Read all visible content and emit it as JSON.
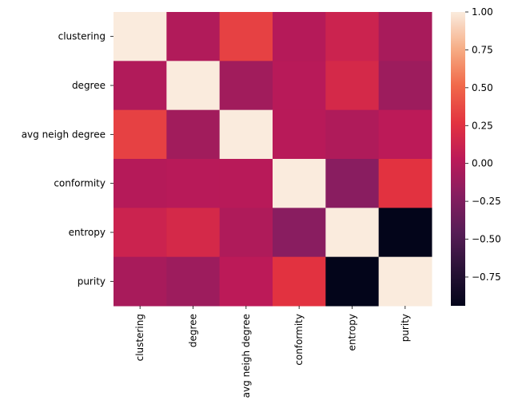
{
  "chart_data": {
    "type": "heatmap",
    "title": "",
    "xlabel": "",
    "ylabel": "",
    "x_labels": [
      "clustering",
      "degree",
      "avg neigh degree",
      "conformity",
      "entropy",
      "purity"
    ],
    "y_labels": [
      "clustering",
      "degree",
      "avg neigh degree",
      "conformity",
      "entropy",
      "purity"
    ],
    "values": [
      [
        1.0,
        -0.02,
        0.33,
        0.0,
        0.12,
        -0.06
      ],
      [
        -0.02,
        1.0,
        -0.09,
        0.01,
        0.18,
        -0.11
      ],
      [
        0.33,
        -0.09,
        1.0,
        0.01,
        -0.03,
        0.03
      ],
      [
        0.0,
        0.01,
        0.01,
        1.0,
        -0.2,
        0.26
      ],
      [
        0.12,
        0.18,
        -0.03,
        -0.2,
        1.0,
        -0.94
      ],
      [
        -0.06,
        -0.11,
        0.03,
        0.26,
        -0.94,
        1.0
      ]
    ],
    "colorbar": {
      "vmin": -0.94,
      "vmax": 1.0,
      "ticks": [
        -0.75,
        -0.5,
        -0.25,
        0.0,
        0.25,
        0.5,
        0.75,
        1.0
      ],
      "tick_labels": [
        "−0.75",
        "−0.50",
        "−0.25",
        "0.00",
        "0.25",
        "0.50",
        "0.75",
        "1.00"
      ]
    },
    "colormap": "rocket",
    "grid": false
  }
}
